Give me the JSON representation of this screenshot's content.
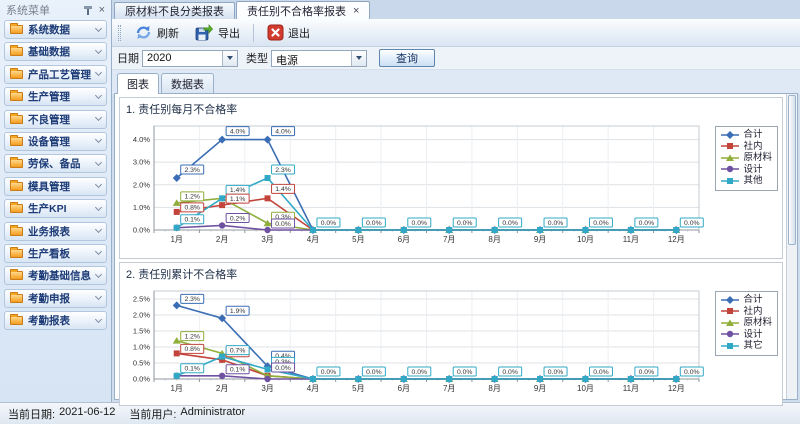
{
  "sidebar": {
    "title": "系统菜单",
    "close_glyph": "×",
    "items": [
      "系统数据",
      "基础数据",
      "产品工艺管理",
      "生产管理",
      "不良管理",
      "设备管理",
      "劳保、备品",
      "模具管理",
      "生产KPI",
      "业务报表",
      "生产看板",
      "考勤基础信息",
      "考勤申报",
      "考勤报表"
    ]
  },
  "doc_tabs": [
    {
      "label": "原材料不良分类报表"
    },
    {
      "label": "责任别不合格率报表",
      "close_glyph": "×",
      "active": true
    }
  ],
  "toolbar": {
    "refresh": "刷新",
    "export": "导出",
    "exit": "退出"
  },
  "filters": {
    "date_label": "日期",
    "date_value": "2020",
    "type_label": "类型",
    "type_value": "电源",
    "query_label": "查询"
  },
  "view_tabs": [
    {
      "label": "图表",
      "active": true
    },
    {
      "label": "数据表"
    }
  ],
  "statusbar": {
    "date_label": "当前日期:",
    "date": "2021-06-12",
    "user_label": "当前用户:",
    "user": "Administrator"
  },
  "chart_data": [
    {
      "type": "line",
      "title": "1. 责任别每月不合格率",
      "categories": [
        "1月",
        "2月",
        "3月",
        "4月",
        "5月",
        "6月",
        "7月",
        "8月",
        "9月",
        "10月",
        "11月",
        "12月"
      ],
      "ylim": [
        0,
        4.6
      ],
      "yticks": {
        "values": [
          0,
          1,
          2,
          3,
          4
        ],
        "labels": [
          "0.0%",
          "1.0%",
          "2.0%",
          "3.0%",
          "4.0%"
        ]
      },
      "legend_position": "right",
      "series": [
        {
          "name": "合计",
          "color": "#3a6db5",
          "marker": "diamond",
          "values": [
            2.3,
            4.0,
            4.0,
            0,
            0,
            0,
            0,
            0,
            0,
            0,
            0,
            0
          ]
        },
        {
          "name": "社内",
          "color": "#c2443b",
          "marker": "square",
          "values": [
            0.8,
            1.1,
            1.4,
            0,
            0,
            0,
            0,
            0,
            0,
            0,
            0,
            0
          ]
        },
        {
          "name": "原材料",
          "color": "#8fae3a",
          "marker": "triangle",
          "values": [
            1.2,
            1.4,
            0.3,
            0,
            0,
            0,
            0,
            0,
            0,
            0,
            0,
            0
          ]
        },
        {
          "name": "设计",
          "color": "#6f51a1",
          "marker": "circle",
          "values": [
            0.1,
            0.2,
            0.0,
            0,
            0,
            0,
            0,
            0,
            0,
            0,
            0,
            0
          ]
        },
        {
          "name": "其他",
          "color": "#31a9c6",
          "marker": "square",
          "values": [
            0.1,
            1.4,
            2.3,
            0,
            0,
            0,
            0,
            0,
            0,
            0,
            0,
            0
          ]
        }
      ],
      "labels": [
        {
          "s": 0,
          "m": 0,
          "t": "2.3%",
          "dy": -13
        },
        {
          "s": 2,
          "m": 0,
          "t": "1.2%",
          "dy": -11
        },
        {
          "s": 1,
          "m": 0,
          "t": "0.8%",
          "dy": -9
        },
        {
          "s": 4,
          "m": 0,
          "t": "0.1%",
          "dy": -13
        },
        {
          "s": 0,
          "m": 1,
          "t": "4.0%",
          "dy": -13
        },
        {
          "s": 4,
          "m": 1,
          "t": "1.4%",
          "dy": -13
        },
        {
          "s": 1,
          "m": 1,
          "t": "1.1%",
          "dy": -11
        },
        {
          "s": 3,
          "m": 1,
          "t": "0.2%",
          "dy": -12
        },
        {
          "s": 0,
          "m": 2,
          "t": "4.0%",
          "dy": -13
        },
        {
          "s": 4,
          "m": 2,
          "t": "2.3%",
          "dy": -13
        },
        {
          "s": 1,
          "m": 2,
          "t": "1.4%",
          "dy": -14
        },
        {
          "s": 2,
          "m": 2,
          "t": "0.3%",
          "dy": -11
        },
        {
          "s": 3,
          "m": 2,
          "t": "0.0%",
          "dy": -11
        },
        {
          "s": 4,
          "m": 3,
          "t": "0.0%",
          "dy": -12
        },
        {
          "s": 4,
          "m": 4,
          "t": "0.0%",
          "dy": -12
        },
        {
          "s": 4,
          "m": 5,
          "t": "0.0%",
          "dy": -12
        },
        {
          "s": 4,
          "m": 6,
          "t": "0.0%",
          "dy": -12
        },
        {
          "s": 4,
          "m": 7,
          "t": "0.0%",
          "dy": -12
        },
        {
          "s": 4,
          "m": 8,
          "t": "0.0%",
          "dy": -12
        },
        {
          "s": 4,
          "m": 9,
          "t": "0.0%",
          "dy": -12
        },
        {
          "s": 4,
          "m": 10,
          "t": "0.0%",
          "dy": -12
        },
        {
          "s": 4,
          "m": 11,
          "t": "0.0%",
          "dy": -12
        }
      ]
    },
    {
      "type": "line",
      "title": "2. 责任别累计不合格率",
      "categories": [
        "1月",
        "2月",
        "3月",
        "4月",
        "5月",
        "6月",
        "7月",
        "8月",
        "9月",
        "10月",
        "11月",
        "12月"
      ],
      "ylim": [
        0,
        2.75
      ],
      "yticks": {
        "values": [
          0,
          0.5,
          1.0,
          1.5,
          2.0,
          2.5
        ],
        "labels": [
          "0.0%",
          "0.5%",
          "1.0%",
          "1.5%",
          "2.0%",
          "2.5%"
        ]
      },
      "legend_position": "right",
      "series": [
        {
          "name": "合计",
          "color": "#3a6db5",
          "marker": "diamond",
          "values": [
            2.3,
            1.9,
            0.4,
            0,
            0,
            0,
            0,
            0,
            0,
            0,
            0,
            0
          ]
        },
        {
          "name": "社内",
          "color": "#c2443b",
          "marker": "square",
          "values": [
            0.8,
            0.6,
            0.1,
            0,
            0,
            0,
            0,
            0,
            0,
            0,
            0,
            0
          ]
        },
        {
          "name": "原材料",
          "color": "#8fae3a",
          "marker": "triangle",
          "values": [
            1.2,
            0.8,
            0.1,
            0,
            0,
            0,
            0,
            0,
            0,
            0,
            0,
            0
          ]
        },
        {
          "name": "设计",
          "color": "#6f51a1",
          "marker": "circle",
          "values": [
            0.1,
            0.1,
            0.0,
            0,
            0,
            0,
            0,
            0,
            0,
            0,
            0,
            0
          ]
        },
        {
          "name": "其它",
          "color": "#31a9c6",
          "marker": "square",
          "values": [
            0.1,
            0.7,
            0.3,
            0,
            0,
            0,
            0,
            0,
            0,
            0,
            0,
            0
          ]
        }
      ],
      "labels": [
        {
          "s": 0,
          "m": 0,
          "t": "2.3%",
          "dy": -11
        },
        {
          "s": 2,
          "m": 0,
          "t": "1.2%",
          "dy": -9
        },
        {
          "s": 1,
          "m": 0,
          "t": "0.8%",
          "dy": -9
        },
        {
          "s": 4,
          "m": 0,
          "t": "0.1%",
          "dy": -12
        },
        {
          "s": 0,
          "m": 1,
          "t": "1.9%",
          "dy": -12
        },
        {
          "s": 1,
          "m": 1,
          "t": "0.6%",
          "dy": -12
        },
        {
          "s": 4,
          "m": 1,
          "t": "0.7%",
          "dy": -11
        },
        {
          "s": 3,
          "m": 1,
          "t": "0.1%",
          "dy": -11
        },
        {
          "s": 0,
          "m": 2,
          "t": "0.4%",
          "dy": -15
        },
        {
          "s": 4,
          "m": 2,
          "t": "0.3%",
          "dy": -12
        },
        {
          "s": 3,
          "m": 2,
          "t": "0.0%",
          "dy": -16
        },
        {
          "s": 4,
          "m": 3,
          "t": "0.0%",
          "dy": -12
        },
        {
          "s": 4,
          "m": 4,
          "t": "0.0%",
          "dy": -12
        },
        {
          "s": 4,
          "m": 5,
          "t": "0.0%",
          "dy": -12
        },
        {
          "s": 4,
          "m": 6,
          "t": "0.0%",
          "dy": -12
        },
        {
          "s": 4,
          "m": 7,
          "t": "0.0%",
          "dy": -12
        },
        {
          "s": 4,
          "m": 8,
          "t": "0.0%",
          "dy": -12
        },
        {
          "s": 4,
          "m": 9,
          "t": "0.0%",
          "dy": -12
        },
        {
          "s": 4,
          "m": 10,
          "t": "0.0%",
          "dy": -12
        },
        {
          "s": 4,
          "m": 11,
          "t": "0.0%",
          "dy": -12
        }
      ]
    }
  ]
}
